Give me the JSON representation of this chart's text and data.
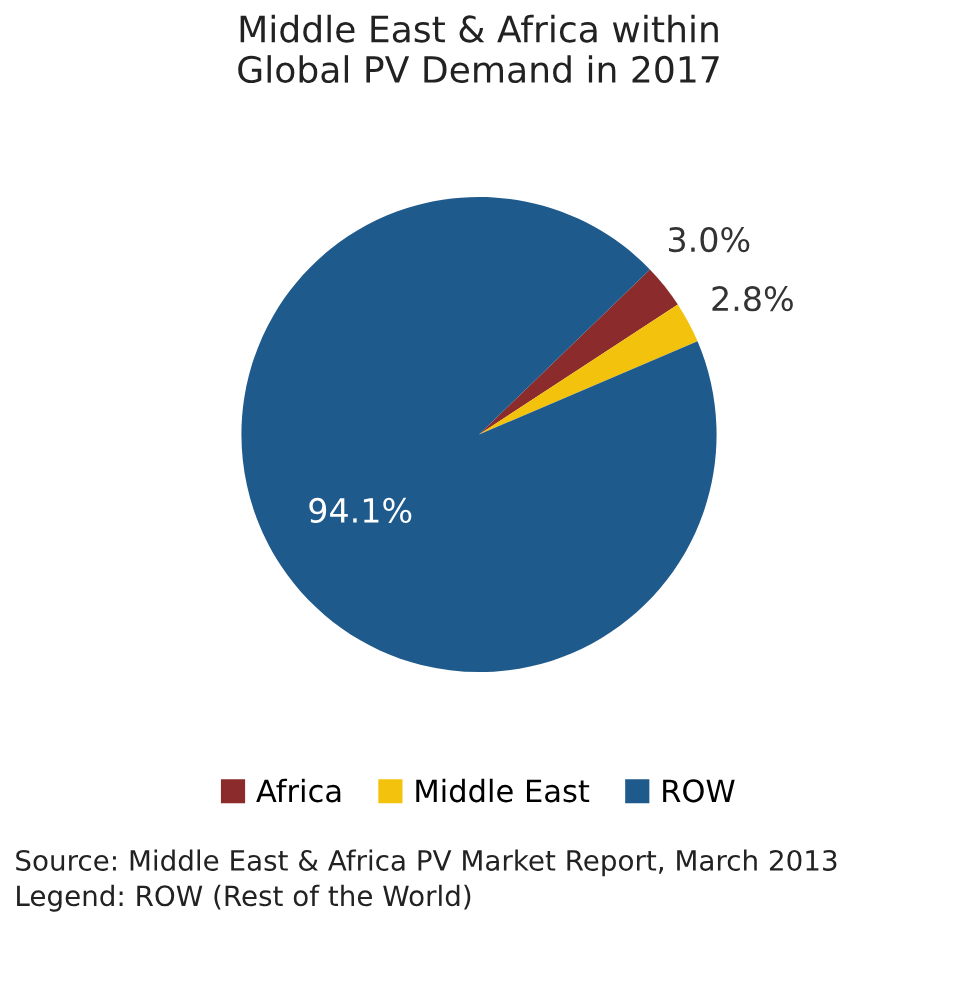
{
  "chart_data": {
    "type": "pie",
    "title": "Middle East & Africa within\nGlobal PV Demand in 2017",
    "categories": [
      "Africa",
      "Middle East",
      "ROW"
    ],
    "values": [
      3.0,
      2.8,
      94.1
    ],
    "colors": [
      "#8c2b2b",
      "#f2c20c",
      "#1f5a8c"
    ],
    "value_labels": [
      "3.0%",
      "2.8%",
      "94.1%"
    ],
    "legend": "bottom",
    "annotations": [
      "Source: Middle East & Africa PV Market Report, March 2013",
      "Legend: ROW (Rest of the World)"
    ]
  }
}
